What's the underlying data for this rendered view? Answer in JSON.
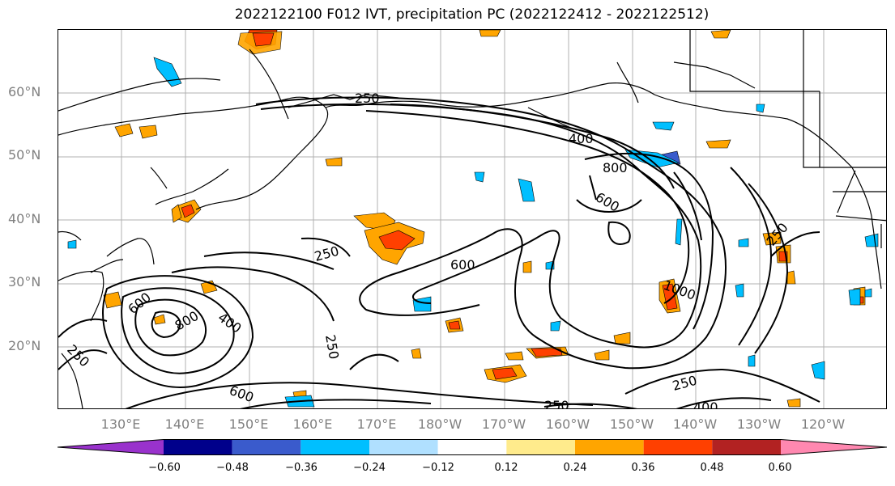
{
  "title": "2022122100 F012 IVT, precipitation PC (2022122412 - 2022122512)",
  "lat_labels": [
    "60°N",
    "50°N",
    "40°N",
    "30°N",
    "20°N"
  ],
  "lon_labels": [
    "130°E",
    "140°E",
    "150°E",
    "160°E",
    "170°E",
    "180°W",
    "170°W",
    "160°W",
    "150°W",
    "140°W",
    "130°W",
    "120°W"
  ],
  "ivt_contour_labels": [
    "250",
    "400",
    "800",
    "600",
    "250",
    "600",
    "1000",
    "250",
    "600",
    "800",
    "400",
    "250",
    "600",
    "250",
    "250",
    "250",
    "400"
  ],
  "colorbar": {
    "colors": [
      "#9932cc",
      "#00008b",
      "#3a5bcc",
      "#00bfff",
      "#b0e0ff",
      "#ffffff",
      "#ffeb8c",
      "#ffa500",
      "#ff4000",
      "#b22222",
      "#ff88b0"
    ],
    "tick_labels": [
      "−0.60",
      "−0.48",
      "−0.36",
      "−0.24",
      "−0.12",
      "0.12",
      "0.24",
      "0.36",
      "0.48",
      "0.60"
    ]
  }
}
